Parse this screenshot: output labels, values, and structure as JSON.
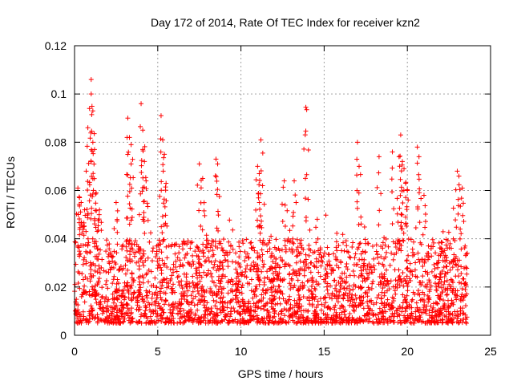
{
  "chart_data": {
    "type": "scatter",
    "title": "Day 172 of 2014, Rate Of TEC Index for receiver kzn2",
    "xlabel": "GPS time / hours",
    "ylabel": "ROTI / TECUs",
    "xlim": [
      0,
      25
    ],
    "ylim": [
      0,
      0.12
    ],
    "x_ticks": [
      0,
      5,
      10,
      15,
      20,
      25
    ],
    "x_tick_labels": [
      "0",
      "5",
      "10",
      "15",
      "20",
      "25"
    ],
    "y_ticks": [
      0,
      0.02,
      0.04,
      0.06,
      0.08,
      0.1,
      0.12
    ],
    "y_tick_labels": [
      "0",
      "0.02",
      "0.04",
      "0.06",
      "0.08",
      "0.1",
      "0.12"
    ],
    "grid": true,
    "marker": "+",
    "marker_color": "#ff0000",
    "series": [
      {
        "name": "ROTI",
        "data_range_hours": [
          0,
          23.6
        ],
        "baseline_range": [
          0.005,
          0.04
        ],
        "points": [
          [
            0.2,
            0.061
          ],
          [
            0.3,
            0.057
          ],
          [
            0.4,
            0.055
          ],
          [
            0.6,
            0.052
          ],
          [
            0.7,
            0.068
          ],
          [
            0.8,
            0.086
          ],
          [
            0.9,
            0.094
          ],
          [
            1.0,
            0.106
          ],
          [
            1.0,
            0.1
          ],
          [
            1.1,
            0.093
          ],
          [
            1.1,
            0.08
          ],
          [
            1.2,
            0.077
          ],
          [
            1.3,
            0.059
          ],
          [
            1.5,
            0.052
          ],
          [
            2.5,
            0.055
          ],
          [
            3.2,
            0.09
          ],
          [
            3.3,
            0.082
          ],
          [
            3.4,
            0.079
          ],
          [
            3.4,
            0.071
          ],
          [
            4.0,
            0.096
          ],
          [
            4.1,
            0.085
          ],
          [
            4.1,
            0.077
          ],
          [
            4.2,
            0.072
          ],
          [
            4.3,
            0.064
          ],
          [
            5.2,
            0.091
          ],
          [
            5.3,
            0.081
          ],
          [
            5.4,
            0.075
          ],
          [
            5.5,
            0.063
          ],
          [
            7.5,
            0.071
          ],
          [
            7.7,
            0.065
          ],
          [
            8.5,
            0.073
          ],
          [
            8.6,
            0.071
          ],
          [
            11.0,
            0.07
          ],
          [
            11.1,
            0.067
          ],
          [
            11.2,
            0.081
          ],
          [
            11.3,
            0.062
          ],
          [
            12.6,
            0.064
          ],
          [
            13.2,
            0.064
          ],
          [
            13.9,
            0.0945
          ],
          [
            13.95,
            0.0935
          ],
          [
            17.0,
            0.08
          ],
          [
            17.1,
            0.07
          ],
          [
            18.3,
            0.074
          ],
          [
            19.1,
            0.076
          ],
          [
            19.5,
            0.074
          ],
          [
            19.6,
            0.083
          ],
          [
            19.7,
            0.072
          ],
          [
            19.8,
            0.069
          ],
          [
            19.9,
            0.063
          ],
          [
            20.0,
            0.06
          ],
          [
            20.6,
            0.078
          ],
          [
            20.7,
            0.074
          ],
          [
            21.0,
            0.058
          ],
          [
            23.0,
            0.068
          ],
          [
            23.1,
            0.066
          ],
          [
            23.3,
            0.061
          ]
        ]
      }
    ]
  }
}
